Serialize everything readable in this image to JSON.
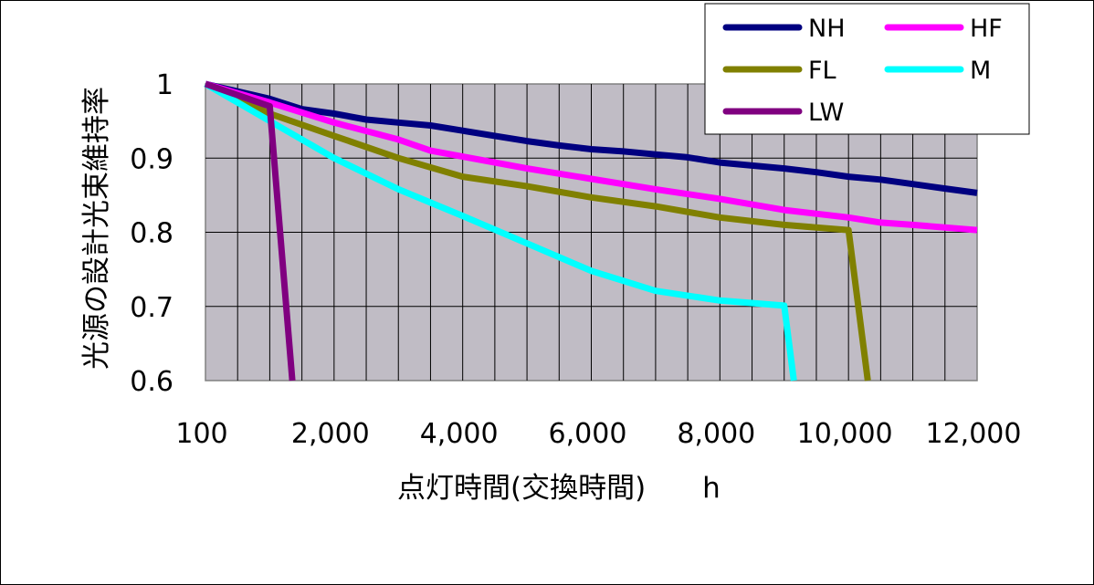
{
  "chart_data": {
    "type": "line",
    "xlabel": "点灯時間(交換時間)　　h",
    "ylabel": "光源の設計光束維持率",
    "ylim": [
      0.6,
      1.0
    ],
    "yticks": [
      {
        "value": 1.0,
        "label": "1"
      },
      {
        "value": 0.9,
        "label": "0.9"
      },
      {
        "value": 0.8,
        "label": "0.8"
      },
      {
        "value": 0.7,
        "label": "0.7"
      },
      {
        "value": 0.6,
        "label": "0.6"
      }
    ],
    "xlim": [
      0,
      12
    ],
    "xticks": [
      {
        "value": 0,
        "label": "100"
      },
      {
        "value": 2,
        "label": "2,000"
      },
      {
        "value": 4,
        "label": "4,000"
      },
      {
        "value": 6,
        "label": "6,000"
      },
      {
        "value": 8,
        "label": "8,000"
      },
      {
        "value": 10,
        "label": "10,000"
      },
      {
        "value": 12,
        "label": "12,000"
      }
    ],
    "grid": true,
    "legend_position": "top-right",
    "series": [
      {
        "name": "NH",
        "color": "#000080",
        "x": [
          0,
          1,
          1.5,
          2,
          2.5,
          3,
          3.5,
          4,
          4.5,
          5,
          5.5,
          6,
          6.5,
          7,
          7.5,
          8,
          8.5,
          9,
          9.5,
          10,
          10.5,
          11,
          11.5,
          12
        ],
        "y": [
          1.0,
          0.98,
          0.966,
          0.96,
          0.952,
          0.948,
          0.944,
          0.937,
          0.93,
          0.923,
          0.917,
          0.912,
          0.909,
          0.905,
          0.901,
          0.894,
          0.89,
          0.886,
          0.881,
          0.875,
          0.871,
          0.865,
          0.859,
          0.853
        ]
      },
      {
        "name": "HF",
        "color": "#ff00ff",
        "x": [
          0,
          1,
          2,
          3,
          3.5,
          4,
          5,
          6,
          7,
          8,
          9,
          10,
          10.5,
          11,
          12
        ],
        "y": [
          1.0,
          0.975,
          0.948,
          0.925,
          0.91,
          0.902,
          0.886,
          0.872,
          0.858,
          0.845,
          0.83,
          0.82,
          0.813,
          0.81,
          0.803
        ]
      },
      {
        "name": "FL",
        "color": "#808000",
        "x": [
          0,
          1,
          2,
          3,
          4,
          5,
          6,
          7,
          8,
          9,
          10,
          10.3
        ],
        "y": [
          1.0,
          0.96,
          0.93,
          0.9,
          0.875,
          0.862,
          0.847,
          0.835,
          0.82,
          0.81,
          0.803,
          0.6
        ]
      },
      {
        "name": "M",
        "color": "#00ffff",
        "x": [
          0,
          1,
          2,
          3,
          4,
          5,
          6,
          7,
          8,
          9,
          9.15
        ],
        "y": [
          1.0,
          0.95,
          0.9,
          0.858,
          0.822,
          0.785,
          0.748,
          0.721,
          0.708,
          0.701,
          0.6
        ]
      },
      {
        "name": "LW",
        "color": "#800080",
        "x": [
          0,
          1,
          1.35
        ],
        "y": [
          1.0,
          0.97,
          0.6
        ]
      }
    ]
  }
}
